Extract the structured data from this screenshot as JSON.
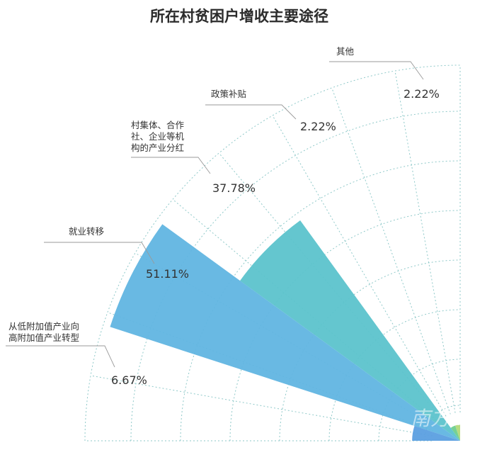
{
  "chart_data": {
    "type": "polar-area",
    "title": "所在村贫困户增收主要途径",
    "categories": [
      "其他",
      "政策补贴",
      "村集体、合作社、企业等机构的产业分红",
      "就业转移",
      "从低附加值产业向高附加值产业转型"
    ],
    "category_lines": [
      [
        "其他"
      ],
      [
        "政策补贴"
      ],
      [
        "村集体、合作",
        "社、企业等机",
        "构的产业分红"
      ],
      [
        "就业转移"
      ],
      [
        "从低附加值产业向",
        "高附加值产业转型"
      ]
    ],
    "values": [
      2.22,
      2.22,
      37.78,
      51.11,
      6.67
    ],
    "value_labels": [
      "2.22%",
      "2.22%",
      "37.78%",
      "51.11%",
      "6.67%"
    ],
    "colors": [
      "#b3d97a",
      "#6fcf8e",
      "#5cc3cc",
      "#61b5e2",
      "#5b9fe0"
    ],
    "grid_color": "#8fc9c9",
    "rmax": 51.11,
    "watermark": "南方+"
  }
}
